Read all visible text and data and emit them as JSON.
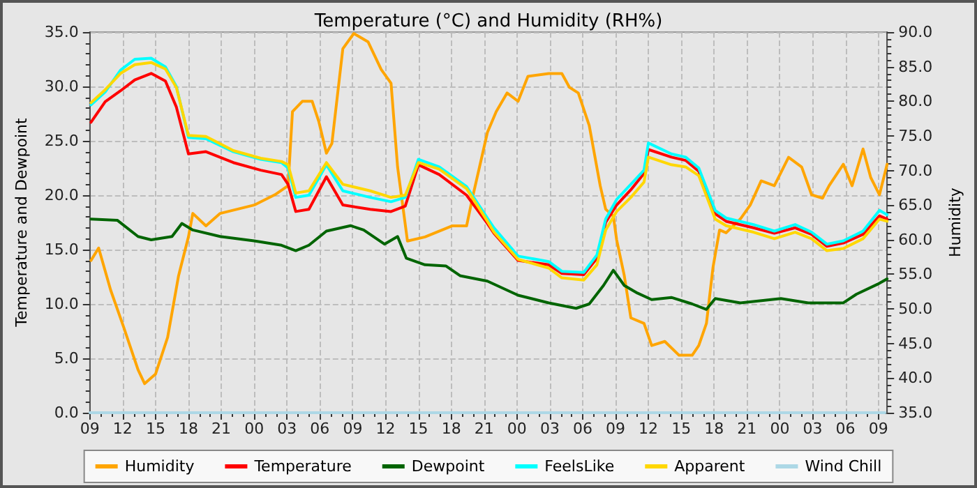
{
  "chart_data": {
    "type": "line",
    "title": "Temperature (°C) and Humidity (RH%)",
    "ylabel": "Temperature and Dewpoint",
    "y2label": "Humidity",
    "xlim": [
      9,
      81.8
    ],
    "xticks": [
      {
        "value": 9,
        "label": "09"
      },
      {
        "value": 12,
        "label": "12"
      },
      {
        "value": 15,
        "label": "15"
      },
      {
        "value": 18,
        "label": "18"
      },
      {
        "value": 21,
        "label": "21"
      },
      {
        "value": 24,
        "label": "00"
      },
      {
        "value": 27,
        "label": "03"
      },
      {
        "value": 30,
        "label": "06"
      },
      {
        "value": 33,
        "label": "09"
      },
      {
        "value": 36,
        "label": "12"
      },
      {
        "value": 39,
        "label": "15"
      },
      {
        "value": 42,
        "label": "18"
      },
      {
        "value": 45,
        "label": "21"
      },
      {
        "value": 48,
        "label": "00"
      },
      {
        "value": 51,
        "label": "03"
      },
      {
        "value": 54,
        "label": "06"
      },
      {
        "value": 57,
        "label": "09"
      },
      {
        "value": 60,
        "label": "12"
      },
      {
        "value": 63,
        "label": "15"
      },
      {
        "value": 66,
        "label": "18"
      },
      {
        "value": 69,
        "label": "21"
      },
      {
        "value": 72,
        "label": "00"
      },
      {
        "value": 75,
        "label": "03"
      },
      {
        "value": 78,
        "label": "06"
      },
      {
        "value": 81,
        "label": "09"
      }
    ],
    "ylim": [
      0,
      35
    ],
    "yticks": [
      {
        "value": 0,
        "label": "0.0"
      },
      {
        "value": 5,
        "label": "5.0"
      },
      {
        "value": 10,
        "label": "10.0"
      },
      {
        "value": 15,
        "label": "15.0"
      },
      {
        "value": 20,
        "label": "20.0"
      },
      {
        "value": 25,
        "label": "25.0"
      },
      {
        "value": 30,
        "label": "30.0"
      },
      {
        "value": 35,
        "label": "35.0"
      }
    ],
    "y2lim": [
      35,
      90
    ],
    "y2ticks": [
      {
        "value": 35,
        "label": "35.0"
      },
      {
        "value": 40,
        "label": "40.0"
      },
      {
        "value": 45,
        "label": "45.0"
      },
      {
        "value": 50,
        "label": "50.0"
      },
      {
        "value": 55,
        "label": "55.0"
      },
      {
        "value": 60,
        "label": "60.0"
      },
      {
        "value": 65,
        "label": "65.0"
      },
      {
        "value": 70,
        "label": "70.0"
      },
      {
        "value": 75,
        "label": "75.0"
      },
      {
        "value": 80,
        "label": "80.0"
      },
      {
        "value": 85,
        "label": "85.0"
      },
      {
        "value": 90,
        "label": "90.0"
      }
    ],
    "grid": true,
    "legend": "bottom",
    "marker": "none",
    "line_style": "solid",
    "series": [
      {
        "name": "Humidity",
        "color": "#ffa500",
        "axis": "y2",
        "x": [
          9.1,
          9.8,
          10.9,
          12.1,
          13.4,
          14,
          15,
          16.1,
          17.1,
          18,
          18.4,
          19.6,
          20.9,
          24,
          25.9,
          27.1,
          27.5,
          28.4,
          29.3,
          29.9,
          30.6,
          31.1,
          32.1,
          33.1,
          34.4,
          35.6,
          36.5,
          37.1,
          38,
          39.6,
          42.1,
          43.4,
          44,
          45.3,
          46.1,
          47.1,
          48.1,
          49,
          50.9,
          52.1,
          52.8,
          53.6,
          54.6,
          55.6,
          56.1,
          56.8,
          57.1,
          57.8,
          58.4,
          59.6,
          60.3,
          61.5,
          62.8,
          64,
          64.6,
          65.3,
          65.9,
          66.5,
          67.1,
          68.4,
          69.3,
          70.3,
          71.5,
          72.8,
          74,
          74.9,
          75.9,
          76.5,
          77.8,
          78.6,
          79.6,
          80.3,
          81.1,
          81.8
        ],
        "values": [
          57,
          58.8,
          52.7,
          47.3,
          41.2,
          39.2,
          40.6,
          45.9,
          54.8,
          60.4,
          63.8,
          62,
          63.8,
          65,
          66.5,
          67.8,
          78.5,
          80,
          80,
          77.1,
          72.5,
          73.9,
          87.6,
          89.8,
          88.6,
          84.6,
          82.6,
          70.5,
          59.8,
          60.4,
          62,
          62,
          66.5,
          75.5,
          78.5,
          81.2,
          80,
          83.6,
          84,
          84,
          82,
          81.2,
          76.5,
          67.8,
          64.4,
          63.4,
          60,
          54.8,
          48.7,
          47.9,
          44.7,
          45.3,
          43.3,
          43.3,
          44.7,
          47.9,
          56,
          61.4,
          61,
          63,
          65,
          68.5,
          67.8,
          71.9,
          70.5,
          66.5,
          66,
          67.8,
          70.9,
          67.8,
          73.1,
          69,
          66.5,
          70.9
        ]
      },
      {
        "name": "Temperature",
        "color": "#ff0000",
        "x": [
          9.1,
          10.4,
          11.8,
          13.1,
          14.6,
          15.9,
          16.9,
          18,
          19.6,
          22.1,
          24.6,
          26.5,
          27.1,
          27.8,
          29,
          30.6,
          32.1,
          34.6,
          36.5,
          37.8,
          39,
          40.9,
          43.4,
          45.3,
          45.9,
          48.1,
          50.9,
          52.1,
          54.1,
          55.3,
          56.1,
          57.1,
          58.4,
          59.6,
          60,
          62.1,
          63.4,
          64.6,
          66.1,
          67.1,
          69.6,
          71.5,
          73.4,
          74.9,
          76.3,
          77.8,
          79.6,
          81.1,
          81.8
        ],
        "values": [
          26.7,
          28.6,
          29.6,
          30.6,
          31.2,
          30.5,
          28.1,
          23.8,
          24.0,
          23.0,
          22.3,
          21.9,
          21.0,
          18.5,
          18.7,
          21.7,
          19.1,
          18.7,
          18.5,
          19.0,
          22.8,
          21.9,
          20.0,
          17.4,
          16.5,
          14.0,
          13.6,
          12.8,
          12.7,
          14.2,
          17.5,
          19.1,
          20.5,
          22.0,
          24.2,
          23.5,
          23.2,
          22.2,
          18.3,
          17.6,
          17.0,
          16.5,
          17.0,
          16.4,
          15.3,
          15.6,
          16.4,
          18.1,
          17.8
        ]
      },
      {
        "name": "Dewpoint",
        "color": "#006400",
        "x": [
          9.1,
          11.5,
          13.4,
          14.6,
          16.5,
          17.4,
          18.4,
          20.9,
          24,
          26.5,
          27.8,
          29,
          30.6,
          32.8,
          34,
          35.9,
          37.1,
          37.9,
          39.6,
          41.5,
          42.8,
          45.3,
          48.1,
          50.9,
          53.4,
          54.6,
          55.9,
          56.8,
          57.8,
          59,
          60.3,
          62.1,
          64,
          65.3,
          66.1,
          68.4,
          72.1,
          74.6,
          77.8,
          79,
          80.9,
          81.8
        ],
        "values": [
          17.8,
          17.7,
          16.2,
          15.9,
          16.2,
          17.4,
          16.8,
          16.2,
          15.8,
          15.4,
          14.9,
          15.4,
          16.7,
          17.2,
          16.8,
          15.5,
          16.2,
          14.2,
          13.6,
          13.5,
          12.6,
          12.1,
          10.8,
          10.1,
          9.6,
          10.0,
          11.7,
          13.1,
          11.7,
          11.0,
          10.4,
          10.6,
          10.0,
          9.5,
          10.5,
          10.1,
          10.5,
          10.1,
          10.1,
          10.9,
          11.8,
          12.3
        ]
      },
      {
        "name": "FeelsLike",
        "color": "#00ffff",
        "x": [
          9.1,
          10.4,
          11.8,
          13.1,
          14.6,
          15.9,
          16.9,
          18,
          19.6,
          22.1,
          24.6,
          26.5,
          27.1,
          27.8,
          29,
          30.6,
          32.1,
          34.6,
          36.5,
          37.8,
          39,
          40.9,
          43.4,
          45.3,
          45.9,
          48.1,
          50.9,
          52.1,
          54.1,
          55.3,
          56.1,
          57.1,
          58.4,
          59.6,
          60,
          62.1,
          63.4,
          64.6,
          66.1,
          67.1,
          69.6,
          71.5,
          73.4,
          74.9,
          76.3,
          77.8,
          79.6,
          81.1,
          81.8
        ],
        "values": [
          28.3,
          29.5,
          31.5,
          32.5,
          32.6,
          31.8,
          30,
          25.3,
          25.2,
          24.0,
          23.3,
          23.0,
          22.5,
          19.8,
          20.0,
          22.8,
          20.4,
          19.8,
          19.4,
          19.8,
          23.3,
          22.6,
          20.8,
          17.9,
          17.0,
          14.4,
          13.9,
          13.0,
          12.9,
          14.5,
          17.8,
          19.6,
          21.0,
          22.3,
          24.8,
          23.8,
          23.5,
          22.5,
          18.6,
          17.9,
          17.3,
          16.7,
          17.3,
          16.6,
          15.5,
          15.8,
          16.7,
          18.6,
          18.2
        ]
      },
      {
        "name": "Apparent",
        "color": "#ffd700",
        "x": [
          9.1,
          10.4,
          11.8,
          13.1,
          14.6,
          15.9,
          16.9,
          18,
          19.6,
          22.1,
          24.6,
          26.5,
          27.1,
          27.8,
          29,
          30.6,
          32.1,
          34.6,
          36.5,
          37.8,
          39,
          40.9,
          43.4,
          45.3,
          45.9,
          48.1,
          50.9,
          52.1,
          54.1,
          55.3,
          56.1,
          57.1,
          58.4,
          59.6,
          60,
          62.1,
          63.4,
          64.6,
          66.1,
          67.1,
          69.6,
          71.5,
          73.4,
          74.9,
          76.3,
          77.8,
          79.6,
          81.1,
          81.8
        ],
        "values": [
          28.5,
          29.7,
          31.2,
          32,
          32.2,
          31.6,
          29.9,
          25.5,
          25.4,
          24.1,
          23.4,
          23.1,
          22.8,
          20.2,
          20.4,
          23.0,
          21.0,
          20.4,
          19.8,
          20.0,
          23.0,
          22.4,
          20.6,
          17.6,
          16.6,
          14.1,
          13.3,
          12.4,
          12.2,
          13.6,
          16.8,
          18.5,
          19.8,
          21.2,
          23.5,
          22.8,
          22.6,
          21.8,
          17.8,
          17.2,
          16.6,
          16.0,
          16.6,
          16.0,
          14.9,
          15.1,
          16.0,
          17.8,
          17.6
        ]
      },
      {
        "name": "Wind Chill",
        "color": "#add8e6",
        "x": [
          9,
          81.6
        ],
        "values": [
          0,
          0
        ]
      }
    ]
  }
}
